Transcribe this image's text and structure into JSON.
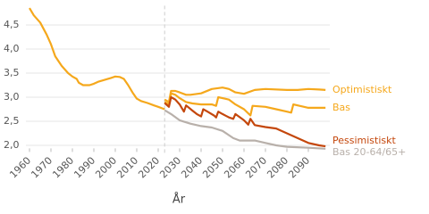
{
  "chart_data": {
    "type": "line",
    "xlabel": "År",
    "xlim": [
      1960,
      2100
    ],
    "ylim": [
      1.9,
      4.9
    ],
    "xticks": [
      1960,
      1970,
      1980,
      1990,
      2000,
      2010,
      2020,
      2030,
      2040,
      2050,
      2060,
      2070,
      2080,
      2090
    ],
    "yticks": [
      {
        "value": 2.0,
        "label": "2,0"
      },
      {
        "value": 2.5,
        "label": "2,5"
      },
      {
        "value": 3.0,
        "label": "3,0"
      },
      {
        "value": 3.5,
        "label": "3,5"
      },
      {
        "value": 4.0,
        "label": "4,0"
      },
      {
        "value": 4.5,
        "label": "4,5"
      }
    ],
    "grid": true,
    "vline": 2023,
    "series": [
      {
        "color": "#f5a81c",
        "x": [
          1960,
          1962,
          1965,
          1968,
          1970,
          1972,
          1975,
          1978,
          1980,
          1982,
          1983,
          1985,
          1988,
          1990,
          1992,
          1995,
          1998,
          2000,
          2002,
          2004,
          2006,
          2008,
          2010,
          2012,
          2015,
          2018,
          2020,
          2023
        ],
        "values": [
          4.85,
          4.7,
          4.55,
          4.3,
          4.1,
          3.85,
          3.65,
          3.5,
          3.43,
          3.38,
          3.3,
          3.25,
          3.25,
          3.28,
          3.32,
          3.36,
          3.4,
          3.43,
          3.42,
          3.38,
          3.25,
          3.1,
          2.97,
          2.92,
          2.88,
          2.83,
          2.8,
          2.75
        ]
      },
      {
        "name": "Optimistiskt",
        "color": "#f5a81c",
        "x": [
          2023,
          2025,
          2026,
          2028,
          2030,
          2033,
          2035,
          2040,
          2045,
          2050,
          2053,
          2056,
          2060,
          2065,
          2070,
          2080,
          2085,
          2090,
          2095,
          2098
        ],
        "values": [
          2.95,
          2.9,
          3.13,
          3.13,
          3.1,
          3.05,
          3.05,
          3.08,
          3.17,
          3.2,
          3.17,
          3.1,
          3.07,
          3.15,
          3.17,
          3.15,
          3.15,
          3.17,
          3.16,
          3.15
        ]
      },
      {
        "name": "Bas",
        "color": "#f5a81c",
        "x": [
          2023,
          2025,
          2026,
          2028,
          2030,
          2033,
          2036,
          2040,
          2045,
          2047,
          2048,
          2050,
          2053,
          2056,
          2060,
          2063,
          2064,
          2070,
          2075,
          2080,
          2082,
          2083,
          2085,
          2090,
          2098
        ],
        "values": [
          2.9,
          2.85,
          3.08,
          3.05,
          2.98,
          2.9,
          2.87,
          2.85,
          2.85,
          2.82,
          3.0,
          2.98,
          2.95,
          2.85,
          2.75,
          2.62,
          2.82,
          2.8,
          2.75,
          2.7,
          2.68,
          2.85,
          2.83,
          2.78,
          2.78
        ]
      },
      {
        "name": "Pessimistiskt",
        "color": "#c4470c",
        "x": [
          2023,
          2025,
          2026,
          2028,
          2030,
          2032,
          2033,
          2036,
          2038,
          2040,
          2041,
          2043,
          2046,
          2047,
          2048,
          2050,
          2053,
          2055,
          2056,
          2060,
          2062,
          2063,
          2065,
          2070,
          2075,
          2080,
          2085,
          2090,
          2095,
          2098
        ],
        "values": [
          2.88,
          2.8,
          3.0,
          2.95,
          2.85,
          2.7,
          2.83,
          2.72,
          2.65,
          2.6,
          2.75,
          2.7,
          2.62,
          2.58,
          2.7,
          2.65,
          2.58,
          2.55,
          2.65,
          2.52,
          2.43,
          2.55,
          2.42,
          2.38,
          2.35,
          2.25,
          2.15,
          2.05,
          2.0,
          1.98
        ]
      },
      {
        "name": "Bas 20-64/65+",
        "color": "#b8b0aa",
        "x": [
          2023,
          2026,
          2030,
          2035,
          2040,
          2045,
          2050,
          2055,
          2058,
          2065,
          2070,
          2075,
          2080,
          2090,
          2098
        ],
        "values": [
          2.73,
          2.65,
          2.52,
          2.45,
          2.4,
          2.37,
          2.3,
          2.15,
          2.1,
          2.1,
          2.05,
          2.0,
          1.97,
          1.95,
          1.93
        ]
      }
    ]
  }
}
